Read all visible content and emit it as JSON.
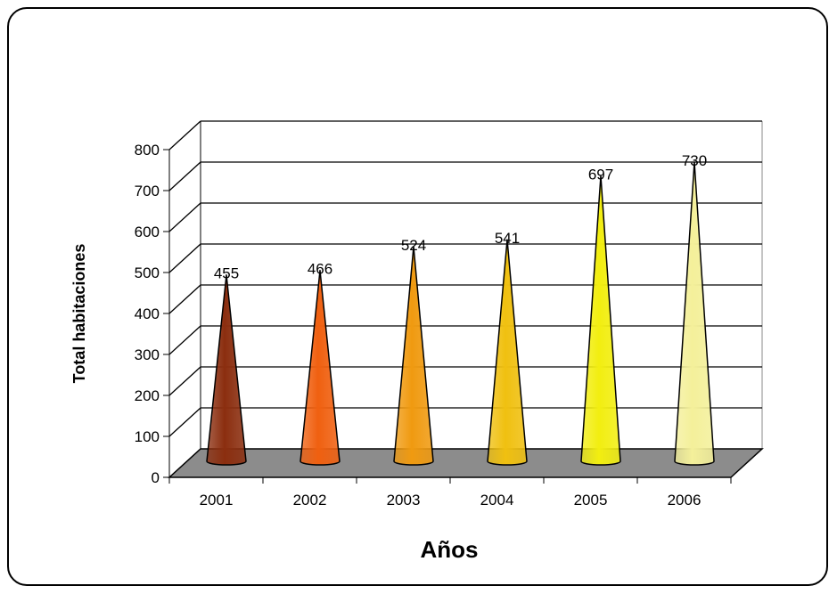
{
  "chart_data": {
    "type": "bar",
    "shape": "cone",
    "title": "",
    "xlabel": "Años",
    "ylabel": "Total habitaciones",
    "categories": [
      "2001",
      "2002",
      "2003",
      "2004",
      "2005",
      "2006"
    ],
    "values": [
      455,
      466,
      524,
      541,
      697,
      730
    ],
    "ylim": [
      0,
      800
    ],
    "yticks": [
      "0",
      "100",
      "200",
      "300",
      "400",
      "500",
      "600",
      "700",
      "800"
    ],
    "grid": true,
    "legend": "none",
    "colors": [
      "#8B2E0F",
      "#F06010",
      "#F09A10",
      "#F0C010",
      "#F2EE10",
      "#F4F09A"
    ],
    "floor_color": "#8C8C8C"
  }
}
